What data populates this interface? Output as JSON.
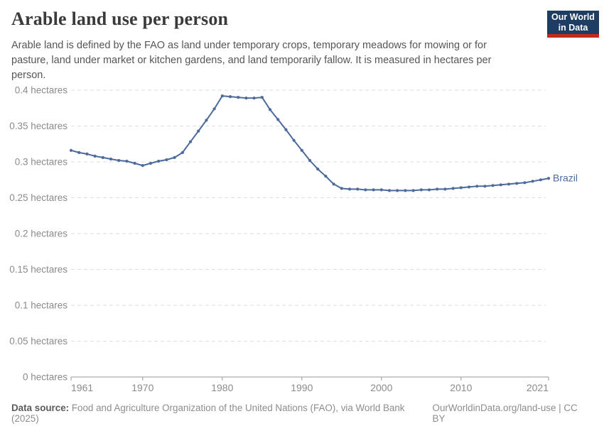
{
  "header": {
    "title": "Arable land use per person",
    "subtitle": "Arable land is defined by the FAO as land under temporary crops, temporary meadows for mowing or for pasture, land under market or kitchen gardens, and land temporarily fallow. It is measured in hectares per person.",
    "logo": {
      "line1": "Our World",
      "line2": "in Data",
      "bg_color": "#1d3d63",
      "accent_color": "#c5281c"
    }
  },
  "chart_data": {
    "type": "line",
    "title": "Arable land use per person",
    "unit": "hectares",
    "grid": "horizontal-dashed",
    "legend_position": "end-of-line-label",
    "ylim": [
      0,
      0.4
    ],
    "yticks": [
      {
        "value": 0,
        "label": "0 hectares"
      },
      {
        "value": 0.05,
        "label": "0.05 hectares"
      },
      {
        "value": 0.1,
        "label": "0.1 hectares"
      },
      {
        "value": 0.15,
        "label": "0.15 hectares"
      },
      {
        "value": 0.2,
        "label": "0.2 hectares"
      },
      {
        "value": 0.25,
        "label": "0.25 hectares"
      },
      {
        "value": 0.3,
        "label": "0.3 hectares"
      },
      {
        "value": 0.35,
        "label": "0.35 hectares"
      },
      {
        "value": 0.4,
        "label": "0.4 hectares"
      }
    ],
    "x_range": [
      1961,
      2021
    ],
    "xticks": [
      1961,
      1970,
      1980,
      1990,
      2000,
      2010,
      2021
    ],
    "x": [
      1961,
      1962,
      1963,
      1964,
      1965,
      1966,
      1967,
      1968,
      1969,
      1970,
      1971,
      1972,
      1973,
      1974,
      1975,
      1976,
      1977,
      1978,
      1979,
      1980,
      1981,
      1982,
      1983,
      1984,
      1985,
      1986,
      1987,
      1988,
      1989,
      1990,
      1991,
      1992,
      1993,
      1994,
      1995,
      1996,
      1997,
      1998,
      1999,
      2000,
      2001,
      2002,
      2003,
      2004,
      2005,
      2006,
      2007,
      2008,
      2009,
      2010,
      2011,
      2012,
      2013,
      2014,
      2015,
      2016,
      2017,
      2018,
      2019,
      2020,
      2021
    ],
    "series": [
      {
        "name": "Brazil",
        "color": "#4c6a9c",
        "values": [
          0.316,
          0.313,
          0.311,
          0.308,
          0.306,
          0.304,
          0.302,
          0.301,
          0.298,
          0.295,
          0.298,
          0.301,
          0.303,
          0.306,
          0.313,
          0.328,
          0.343,
          0.358,
          0.374,
          0.392,
          0.391,
          0.39,
          0.389,
          0.389,
          0.39,
          0.373,
          0.359,
          0.345,
          0.33,
          0.316,
          0.302,
          0.29,
          0.28,
          0.269,
          0.263,
          0.262,
          0.262,
          0.261,
          0.261,
          0.261,
          0.26,
          0.26,
          0.26,
          0.26,
          0.261,
          0.261,
          0.262,
          0.262,
          0.263,
          0.264,
          0.265,
          0.266,
          0.266,
          0.267,
          0.268,
          0.269,
          0.27,
          0.271,
          0.273,
          0.275,
          0.277
        ]
      }
    ],
    "axis_color": "#999999",
    "grid_color": "#dedede",
    "tick_label_color": "#8b8b8b"
  },
  "footer": {
    "datasource_label": "Data source:",
    "datasource_text": " Food and Agriculture Organization of the United Nations (FAO), via World Bank (2025)",
    "link_text": "OurWorldinData.org/land-use | CC BY"
  }
}
